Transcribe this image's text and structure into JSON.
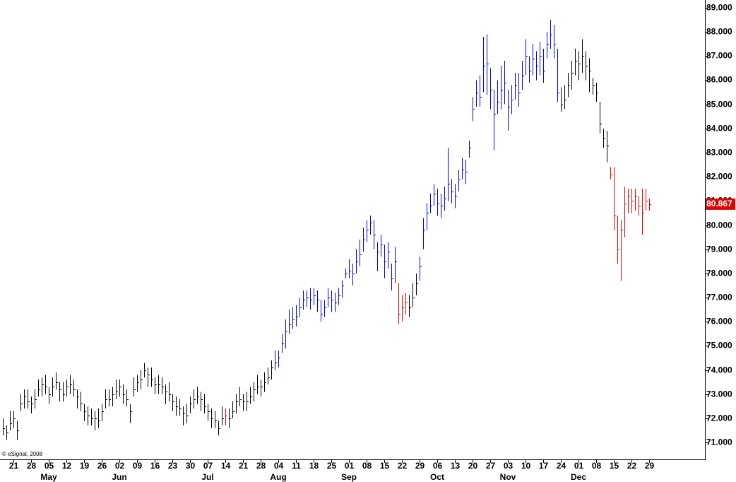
{
  "chart_data": {
    "type": "ohlc",
    "note_text": "© eSignal, 2008",
    "xlim": [
      -0.8,
      198.8
    ],
    "xticks": [
      {
        "value": 3,
        "label": "21"
      },
      {
        "value": 8,
        "label": "28"
      },
      {
        "value": 13,
        "label": "05"
      },
      {
        "value": 18,
        "label": "12"
      },
      {
        "value": 23,
        "label": "19"
      },
      {
        "value": 28,
        "label": "26"
      },
      {
        "value": 33,
        "label": "02"
      },
      {
        "value": 38,
        "label": "09"
      },
      {
        "value": 43,
        "label": "16"
      },
      {
        "value": 48,
        "label": "23"
      },
      {
        "value": 53,
        "label": "30"
      },
      {
        "value": 58,
        "label": "07"
      },
      {
        "value": 63,
        "label": "14"
      },
      {
        "value": 68,
        "label": "21"
      },
      {
        "value": 73,
        "label": "28"
      },
      {
        "value": 78,
        "label": "04"
      },
      {
        "value": 83,
        "label": "11"
      },
      {
        "value": 88,
        "label": "18"
      },
      {
        "value": 93,
        "label": "25"
      },
      {
        "value": 98,
        "label": "01"
      },
      {
        "value": 103,
        "label": "08"
      },
      {
        "value": 108,
        "label": "15"
      },
      {
        "value": 113,
        "label": "22"
      },
      {
        "value": 118,
        "label": "29"
      },
      {
        "value": 123,
        "label": "06"
      },
      {
        "value": 128,
        "label": "13"
      },
      {
        "value": 133,
        "label": "20"
      },
      {
        "value": 138,
        "label": "27"
      },
      {
        "value": 143,
        "label": "03"
      },
      {
        "value": 148,
        "label": "10"
      },
      {
        "value": 153,
        "label": "17"
      },
      {
        "value": 158,
        "label": "24"
      },
      {
        "value": 163,
        "label": "01"
      },
      {
        "value": 168,
        "label": "08"
      },
      {
        "value": 173,
        "label": "15"
      },
      {
        "value": 178,
        "label": "22"
      },
      {
        "value": 183,
        "label": "29"
      }
    ],
    "month_ticks": [
      {
        "value": 13,
        "label": "May"
      },
      {
        "value": 33,
        "label": "Jun"
      },
      {
        "value": 58,
        "label": "Jul"
      },
      {
        "value": 78,
        "label": "Aug"
      },
      {
        "value": 98,
        "label": "Sep"
      },
      {
        "value": 123,
        "label": "Oct"
      },
      {
        "value": 143,
        "label": "Nov"
      },
      {
        "value": 163,
        "label": "Dec"
      }
    ],
    "ylim": [
      70.3,
      89.32
    ],
    "yticks": [
      {
        "value": 71,
        "label": "71.000"
      },
      {
        "value": 72,
        "label": "72.000"
      },
      {
        "value": 73,
        "label": "73.000"
      },
      {
        "value": 74,
        "label": "74.000"
      },
      {
        "value": 75,
        "label": "75.000"
      },
      {
        "value": 76,
        "label": "76.000"
      },
      {
        "value": 77,
        "label": "77.000"
      },
      {
        "value": 78,
        "label": "78.000"
      },
      {
        "value": 79,
        "label": "79.000"
      },
      {
        "value": 80,
        "label": "80.000"
      },
      {
        "value": 81,
        "label": "81.000"
      },
      {
        "value": 82,
        "label": "82.000"
      },
      {
        "value": 83,
        "label": "83.000"
      },
      {
        "value": 84,
        "label": "84.000"
      },
      {
        "value": 85,
        "label": "85.000"
      },
      {
        "value": 86,
        "label": "86.000"
      },
      {
        "value": 87,
        "label": "87.000"
      },
      {
        "value": 88,
        "label": "88.000"
      },
      {
        "value": 89,
        "label": "89.000"
      }
    ],
    "last_price_color": "#e00000",
    "high": [
      72.0,
      71.7,
      72.3,
      72.3,
      71.9,
      73.0,
      73.2,
      73.2,
      72.9,
      73.2,
      73.6,
      73.7,
      73.8,
      73.3,
      73.7,
      73.9,
      73.5,
      73.5,
      73.6,
      73.8,
      73.6,
      73.2,
      73.1,
      72.6,
      72.5,
      72.4,
      72.3,
      72.4,
      72.6,
      73.2,
      73.2,
      73.3,
      73.6,
      73.6,
      73.4,
      73.2,
      72.6,
      73.7,
      73.8,
      74.0,
      74.3,
      74.1,
      74.1,
      73.7,
      73.8,
      73.7,
      73.4,
      73.5,
      73.0,
      72.9,
      72.8,
      72.5,
      72.6,
      72.9,
      73.2,
      73.3,
      73.1,
      73.0,
      72.6,
      72.4,
      72.3,
      71.9,
      72.5,
      72.4,
      72.4,
      72.7,
      73.0,
      73.3,
      73.0,
      73.1,
      73.3,
      73.5,
      73.8,
      73.6,
      73.9,
      74.1,
      74.4,
      74.8,
      74.8,
      75.5,
      76.1,
      76.5,
      76.6,
      76.7,
      77.0,
      77.3,
      77.3,
      77.4,
      77.4,
      77.3,
      76.9,
      76.9,
      77.4,
      77.3,
      77.2,
      77.4,
      77.7,
      78.2,
      78.6,
      78.4,
      79.0,
      79.4,
      79.9,
      80.2,
      80.4,
      80.2,
      79.3,
      79.6,
      79.2,
      79.3,
      78.4,
      79.1,
      77.6,
      77.1,
      77.2,
      77.1,
      77.6,
      78.0,
      78.7,
      80.3,
      80.9,
      81.3,
      81.7,
      81.5,
      81.3,
      81.6,
      83.2,
      81.9,
      81.7,
      82.3,
      82.8,
      82.7,
      83.5,
      85.3,
      86.0,
      86.2,
      87.8,
      87.9,
      86.5,
      85.6,
      86.0,
      86.6,
      86.8,
      85.6,
      85.8,
      86.3,
      86.3,
      86.8,
      87.7,
      87.0,
      87.5,
      87.2,
      87.6,
      87.3,
      88.0,
      88.5,
      88.3,
      87.3,
      85.7,
      85.8,
      86.3,
      86.8,
      87.3,
      87.2,
      87.7,
      87.2,
      86.9,
      86.1,
      85.9,
      85.1,
      84.0,
      83.9,
      82.4,
      82.4,
      80.4,
      80.2,
      81.6,
      81.5,
      81.5,
      81.5,
      81.2,
      81.5,
      81.5,
      81.1
    ],
    "low": [
      71.3,
      71.1,
      71.5,
      71.6,
      71.1,
      72.3,
      72.4,
      72.4,
      72.2,
      72.4,
      72.9,
      72.9,
      73.0,
      72.6,
      72.9,
      73.2,
      72.7,
      72.7,
      72.9,
      73.0,
      72.9,
      72.4,
      72.3,
      71.9,
      71.7,
      71.7,
      71.5,
      71.6,
      71.9,
      72.4,
      72.5,
      72.5,
      72.8,
      72.9,
      72.6,
      72.5,
      71.8,
      72.9,
      73.1,
      73.2,
      73.7,
      73.3,
      73.3,
      73.0,
      73.0,
      73.0,
      72.6,
      72.7,
      72.3,
      72.1,
      72.1,
      71.7,
      71.8,
      72.2,
      72.4,
      72.6,
      72.3,
      72.2,
      71.9,
      71.6,
      71.6,
      71.3,
      71.7,
      71.7,
      71.6,
      72.0,
      72.2,
      72.5,
      72.3,
      72.3,
      72.6,
      72.7,
      73.0,
      72.9,
      73.1,
      73.4,
      73.6,
      74.0,
      74.1,
      74.7,
      74.9,
      75.5,
      75.7,
      75.8,
      76.2,
      76.5,
      76.6,
      76.5,
      76.7,
      76.4,
      76.0,
      76.2,
      76.6,
      76.4,
      76.4,
      76.7,
      77.0,
      77.8,
      77.8,
      77.5,
      78.0,
      78.3,
      78.9,
      79.3,
      79.6,
      79.0,
      78.1,
      78.7,
      77.8,
      78.2,
      77.3,
      77.6,
      75.9,
      76.0,
      76.3,
      76.2,
      76.6,
      77.1,
      77.7,
      79.0,
      79.8,
      80.5,
      80.8,
      80.4,
      80.3,
      80.6,
      81.0,
      80.9,
      80.7,
      81.4,
      81.9,
      81.7,
      82.8,
      84.3,
      84.9,
      84.9,
      85.5,
      85.4,
      84.8,
      83.1,
      84.6,
      84.8,
      85.0,
      83.9,
      84.6,
      85.2,
      84.9,
      85.6,
      86.2,
      85.9,
      86.2,
      86.0,
      86.2,
      85.9,
      86.9,
      87.3,
      86.9,
      85.1,
      84.7,
      84.8,
      85.3,
      85.6,
      86.2,
      86.0,
      86.3,
      86.0,
      85.5,
      85.4,
      85.1,
      83.8,
      83.2,
      82.6,
      81.9,
      79.8,
      78.4,
      77.7,
      79.5,
      80.5,
      80.5,
      80.6,
      80.4,
      79.6,
      80.6,
      80.6
    ],
    "close": [
      71.6,
      71.4,
      71.8,
      72.0,
      71.5,
      72.6,
      72.9,
      72.7,
      72.6,
      72.8,
      73.2,
      73.4,
      73.3,
      73.0,
      73.3,
      73.5,
      73.2,
      73.0,
      73.3,
      73.4,
      73.2,
      72.9,
      72.6,
      72.3,
      72.1,
      72.0,
      72.0,
      71.9,
      72.3,
      72.8,
      72.8,
      73.0,
      73.1,
      73.3,
      73.0,
      72.8,
      72.3,
      73.2,
      73.5,
      73.6,
      74.0,
      73.8,
      73.6,
      73.4,
      73.4,
      73.3,
      73.1,
      73.0,
      72.7,
      72.5,
      72.4,
      72.2,
      72.1,
      72.6,
      72.8,
      72.9,
      72.8,
      72.5,
      72.3,
      72.0,
      71.9,
      71.6,
      72.0,
      72.1,
      72.0,
      72.3,
      72.7,
      72.8,
      72.7,
      72.7,
      72.9,
      73.2,
      73.3,
      73.3,
      73.5,
      73.7,
      74.1,
      74.3,
      74.5,
      75.1,
      75.6,
      75.9,
      76.1,
      76.2,
      76.6,
      76.9,
      77.0,
      76.9,
      77.1,
      76.9,
      76.3,
      76.6,
      77.0,
      76.9,
      76.8,
      77.1,
      77.5,
      78.0,
      78.1,
      78.0,
      78.5,
      78.8,
      79.4,
      79.8,
      80.1,
      79.6,
      78.9,
      79.2,
      78.5,
      78.9,
      77.8,
      78.5,
      76.3,
      76.6,
      76.8,
      76.6,
      77.0,
      77.6,
      78.3,
      79.8,
      80.5,
      80.8,
      81.3,
      80.9,
      80.8,
      81.1,
      81.7,
      81.4,
      81.2,
      81.9,
      82.3,
      82.2,
      83.2,
      84.8,
      85.5,
      85.3,
      86.6,
      86.7,
      85.6,
      84.6,
      85.1,
      85.6,
      85.9,
      84.9,
      85.2,
      85.8,
      85.5,
      86.2,
      87.0,
      86.4,
      86.9,
      86.6,
      87.0,
      86.4,
      87.5,
      87.9,
      87.5,
      85.5,
      85.0,
      85.2,
      85.8,
      86.3,
      86.8,
      86.7,
      87.0,
      86.6,
      86.4,
      85.8,
      85.5,
      84.2,
      83.6,
      83.3,
      82.1,
      80.4,
      79.0,
      79.8,
      80.9,
      81.2,
      81.0,
      81.2,
      80.8,
      80.5,
      81.0,
      80.867
    ],
    "colors": [
      "#000",
      "#000",
      "#000",
      "#000",
      "#000",
      "#000",
      "#000",
      "#000",
      "#000",
      "#000",
      "#000",
      "#000",
      "#000",
      "#000",
      "#000",
      "#000",
      "#000",
      "#000",
      "#000",
      "#000",
      "#000",
      "#000",
      "#000",
      "#000",
      "#000",
      "#000",
      "#000",
      "#000",
      "#000",
      "#000",
      "#000",
      "#000",
      "#000",
      "#000",
      "#000",
      "#000",
      "#000",
      "#000",
      "#000",
      "#000",
      "#000",
      "#000",
      "#000",
      "#000",
      "#000",
      "#000",
      "#000",
      "#000",
      "#000",
      "#000",
      "#000",
      "#000",
      "#000",
      "#000",
      "#000",
      "#000",
      "#000",
      "#000",
      "#000",
      "#000",
      "#000",
      "#000",
      "#000",
      "#e00",
      "#000",
      "#000",
      "#000",
      "#000",
      "#000",
      "#000",
      "#000",
      "#000",
      "#000",
      "#000",
      "#000",
      "#000",
      "#000",
      "#00f",
      "#00f",
      "#00f",
      "#00f",
      "#00f",
      "#00f",
      "#00f",
      "#00f",
      "#00f",
      "#00f",
      "#00f",
      "#00f",
      "#00f",
      "#00f",
      "#00f",
      "#00f",
      "#00f",
      "#00f",
      "#00f",
      "#00f",
      "#00f",
      "#00f",
      "#00f",
      "#00f",
      "#00f",
      "#00f",
      "#00f",
      "#00f",
      "#00f",
      "#00f",
      "#00f",
      "#00f",
      "#00f",
      "#00f",
      "#00f",
      "#e00",
      "#e00",
      "#e00",
      "#000",
      "#000",
      "#000",
      "#00f",
      "#00f",
      "#00f",
      "#00f",
      "#00f",
      "#00f",
      "#00f",
      "#00f",
      "#00f",
      "#00f",
      "#00f",
      "#00f",
      "#00f",
      "#00f",
      "#00f",
      "#00f",
      "#00f",
      "#00f",
      "#00f",
      "#00f",
      "#00f",
      "#00f",
      "#00f",
      "#00f",
      "#00f",
      "#00f",
      "#00f",
      "#00f",
      "#00f",
      "#00f",
      "#00f",
      "#00f",
      "#00f",
      "#00f",
      "#00f",
      "#00f",
      "#00f",
      "#00f",
      "#00f",
      "#00f",
      "#000",
      "#000",
      "#000",
      "#000",
      "#000",
      "#000",
      "#000",
      "#000",
      "#000",
      "#000",
      "#000",
      "#000",
      "#000",
      "#000",
      "#e00",
      "#e00",
      "#e00",
      "#e00",
      "#e00",
      "#e00",
      "#e00",
      "#e00",
      "#e00",
      "#e00",
      "#e00",
      "#e00"
    ]
  }
}
